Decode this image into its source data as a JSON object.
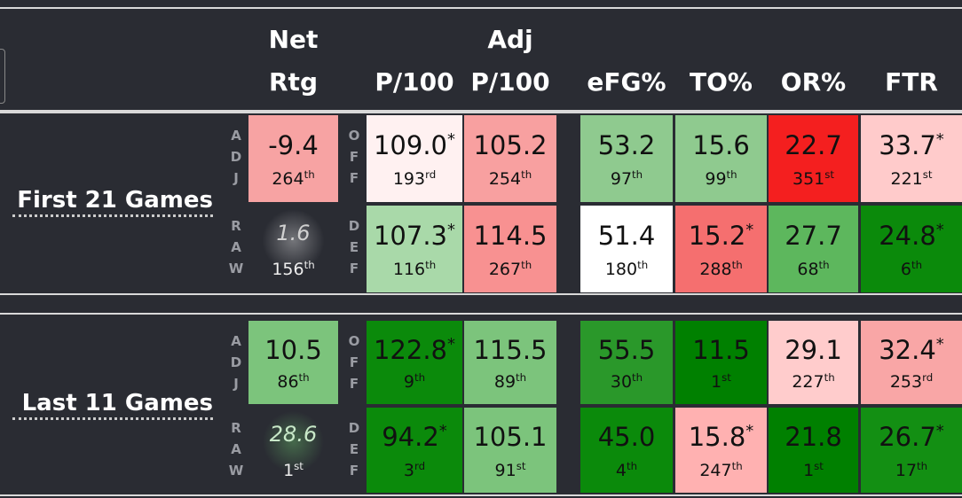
{
  "header": {
    "columns": [
      {
        "top": "Net",
        "bottom": "Rtg"
      },
      {
        "bottom": "P/100"
      },
      {
        "top": "Adj",
        "bottom": "P/100"
      },
      {
        "bottom": "eFG%"
      },
      {
        "bottom": "TO%"
      },
      {
        "bottom": "OR%"
      },
      {
        "bottom": "FTR"
      }
    ]
  },
  "groups": [
    {
      "label": "First 21 Games",
      "rows": [
        {
          "side": "ADJ",
          "kind": "OFF",
          "cells": [
            {
              "value": "-9.4",
              "rank": "264",
              "suffix": "th",
              "color": "#f7a3a3"
            },
            {
              "value": "109.0",
              "mark": "*",
              "rank": "193",
              "suffix": "rd",
              "color": "#fff1f1"
            },
            {
              "value": "105.2",
              "rank": "254",
              "suffix": "th",
              "color": "#f8a0a0"
            },
            {
              "value": "53.2",
              "rank": "97",
              "suffix": "th",
              "color": "#8fca8f"
            },
            {
              "value": "15.6",
              "rank": "99",
              "suffix": "th",
              "color": "#8fca8f"
            },
            {
              "value": "22.7",
              "rank": "351",
              "suffix": "st",
              "color": "#f41f1f"
            },
            {
              "value": "33.7",
              "mark": "*",
              "rank": "221",
              "suffix": "st",
              "color": "#ffcbcb"
            }
          ]
        },
        {
          "side": "RAW",
          "kind": "DEF",
          "cells": [
            {
              "value": "1.6",
              "rank": "156",
              "suffix": "th",
              "color": "#2a2c33",
              "text_color": "#d0d0d0",
              "italic": true,
              "glow": "rgba(255,255,255,0.35)"
            },
            {
              "value": "107.3",
              "mark": "*",
              "rank": "116",
              "suffix": "th",
              "color": "#a9d9a9"
            },
            {
              "value": "114.5",
              "rank": "267",
              "suffix": "th",
              "color": "#f89191"
            },
            {
              "value": "51.4",
              "rank": "180",
              "suffix": "th",
              "color": "#ffffff"
            },
            {
              "value": "15.2",
              "mark": "*",
              "rank": "288",
              "suffix": "th",
              "color": "#f56f6f"
            },
            {
              "value": "27.7",
              "rank": "68",
              "suffix": "th",
              "color": "#5db75d"
            },
            {
              "value": "24.8",
              "mark": "*",
              "rank": "6",
              "suffix": "th",
              "color": "#0b8a0b"
            }
          ]
        }
      ]
    },
    {
      "label": "Last 11 Games",
      "rows": [
        {
          "side": "ADJ",
          "kind": "OFF",
          "cells": [
            {
              "value": "10.5",
              "rank": "86",
              "suffix": "th",
              "color": "#7cc47c"
            },
            {
              "value": "122.8",
              "mark": "*",
              "rank": "9",
              "suffix": "th",
              "color": "#0b8a0b"
            },
            {
              "value": "115.5",
              "rank": "89",
              "suffix": "th",
              "color": "#7cc47c"
            },
            {
              "value": "55.5",
              "rank": "30",
              "suffix": "th",
              "color": "#2a982a"
            },
            {
              "value": "11.5",
              "rank": "1",
              "suffix": "st",
              "color": "#008000"
            },
            {
              "value": "29.1",
              "rank": "227",
              "suffix": "th",
              "color": "#ffcccc"
            },
            {
              "value": "32.4",
              "mark": "*",
              "rank": "253",
              "suffix": "rd",
              "color": "#f9a6a6"
            }
          ]
        },
        {
          "side": "RAW",
          "kind": "DEF",
          "cells": [
            {
              "value": "28.6",
              "rank": "1",
              "suffix": "st",
              "color": "#2a2c33",
              "text_color": "#c8e8c8",
              "italic": true,
              "glow": "rgba(120,220,120,0.35)"
            },
            {
              "value": "94.2",
              "mark": "*",
              "rank": "3",
              "suffix": "rd",
              "color": "#0b8a0b"
            },
            {
              "value": "105.1",
              "rank": "91",
              "suffix": "st",
              "color": "#7cc47c"
            },
            {
              "value": "45.0",
              "rank": "4",
              "suffix": "th",
              "color": "#0b8a0b"
            },
            {
              "value": "15.8",
              "mark": "*",
              "rank": "247",
              "suffix": "th",
              "color": "#ffb1b1"
            },
            {
              "value": "21.8",
              "rank": "1",
              "suffix": "st",
              "color": "#008000"
            },
            {
              "value": "26.7",
              "mark": "*",
              "rank": "17",
              "suffix": "th",
              "color": "#138f13"
            }
          ]
        }
      ]
    }
  ]
}
